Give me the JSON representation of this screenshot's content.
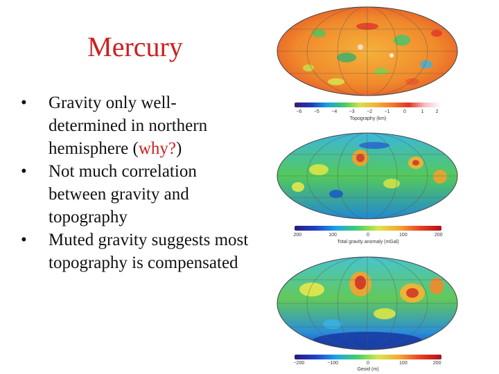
{
  "slide": {
    "title": "Mercury",
    "bullets": [
      {
        "pre": "Gravity only well-determined in northern hemisphere (",
        "accent": "why?",
        "post": ")"
      },
      {
        "pre": "Not much correlation between gravity and topography",
        "accent": "",
        "post": ""
      },
      {
        "pre": "Muted gravity suggests most topography is compensated",
        "accent": "",
        "post": ""
      }
    ]
  },
  "figures": {
    "topography": {
      "ticks": [
        "−6",
        "−5",
        "−4",
        "−3",
        "−2",
        "−1",
        "0",
        "1",
        "2"
      ],
      "label": "Topography (km)"
    },
    "gravity": {
      "ticks": [
        "200",
        "100",
        "0",
        "100",
        "200"
      ],
      "label": "Total gravity anomaly (mGal)"
    },
    "geoid": {
      "ticks": [
        "−200",
        "−100",
        "0",
        "100",
        "200"
      ],
      "label": "Geoid (m)"
    }
  },
  "colors": {
    "title": "#cc1f1f",
    "accent": "#cc1f1f"
  }
}
